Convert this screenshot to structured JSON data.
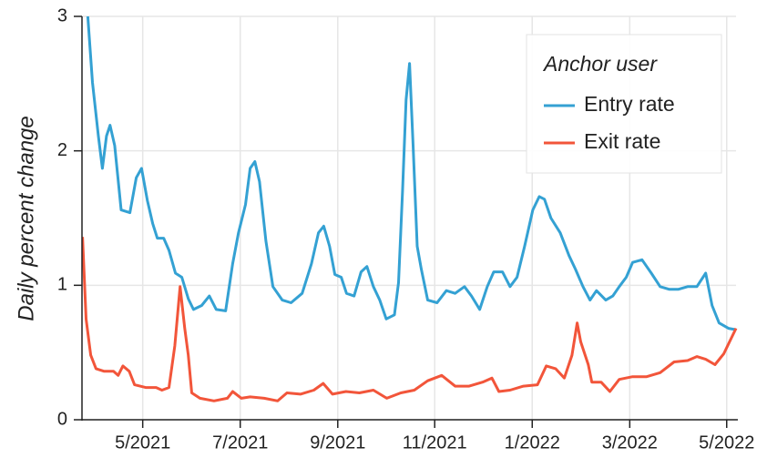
{
  "chart_data": {
    "type": "line",
    "y_label": "Daily percent change",
    "legend_title": "Anchor user",
    "legend_position": "upper right",
    "grid": true,
    "xlim": [
      2021.229,
      2022.349
    ],
    "xticks": [
      {
        "value": 2021.333,
        "label": "5/2021"
      },
      {
        "value": 2021.5,
        "label": "7/2021"
      },
      {
        "value": 2021.667,
        "label": "9/2021"
      },
      {
        "value": 2021.833,
        "label": "11/2021"
      },
      {
        "value": 2022.0,
        "label": "1/2022"
      },
      {
        "value": 2022.167,
        "label": "3/2022"
      },
      {
        "value": 2022.333,
        "label": "5/2022"
      }
    ],
    "ylim": [
      0,
      3
    ],
    "yticks": [
      0,
      1,
      2,
      3
    ],
    "series": [
      {
        "name": "Entry rate",
        "color": "#34a1d3",
        "x": [
          2021.239,
          2021.247,
          2021.257,
          2021.264,
          2021.271,
          2021.277,
          2021.285,
          2021.296,
          2021.311,
          2021.322,
          2021.331,
          2021.341,
          2021.35,
          2021.358,
          2021.369,
          2021.378,
          2021.389,
          2021.4,
          2021.411,
          2021.42,
          2021.434,
          2021.447,
          2021.459,
          2021.475,
          2021.487,
          2021.497,
          2021.509,
          2021.517,
          2021.525,
          2021.533,
          2021.544,
          2021.556,
          2021.572,
          2021.587,
          2021.606,
          2021.622,
          2021.634,
          2021.643,
          2021.653,
          2021.662,
          2021.673,
          2021.682,
          2021.695,
          2021.707,
          2021.717,
          2021.728,
          2021.739,
          2021.75,
          2021.764,
          2021.771,
          2021.778,
          2021.784,
          2021.79,
          2021.796,
          2021.803,
          2021.81,
          2021.821,
          2021.837,
          2021.853,
          2021.868,
          2021.884,
          2021.896,
          2021.91,
          2021.923,
          2021.934,
          2021.949,
          2021.962,
          2021.974,
          2021.987,
          2022.001,
          2022.012,
          2022.021,
          2022.032,
          2022.048,
          2022.063,
          2022.074,
          2022.087,
          2022.099,
          2022.11,
          2022.126,
          2022.138,
          2022.149,
          2022.161,
          2022.172,
          2022.188,
          2022.204,
          2022.219,
          2022.235,
          2022.25,
          2022.266,
          2022.282,
          2022.297,
          2022.308,
          2022.32,
          2022.336,
          2022.349
        ],
        "values": [
          3.0,
          2.51,
          2.11,
          1.87,
          2.11,
          2.19,
          2.04,
          1.56,
          1.54,
          1.8,
          1.87,
          1.63,
          1.46,
          1.35,
          1.35,
          1.26,
          1.09,
          1.06,
          0.9,
          0.82,
          0.85,
          0.92,
          0.82,
          0.81,
          1.16,
          1.39,
          1.6,
          1.87,
          1.92,
          1.77,
          1.33,
          0.99,
          0.89,
          0.87,
          0.94,
          1.16,
          1.39,
          1.44,
          1.29,
          1.08,
          1.06,
          0.94,
          0.92,
          1.1,
          1.14,
          0.99,
          0.89,
          0.75,
          0.78,
          1.02,
          1.7,
          2.38,
          2.65,
          2.04,
          1.29,
          1.12,
          0.89,
          0.87,
          0.96,
          0.94,
          0.99,
          0.92,
          0.82,
          0.99,
          1.1,
          1.1,
          0.99,
          1.06,
          1.29,
          1.56,
          1.66,
          1.64,
          1.5,
          1.39,
          1.22,
          1.12,
          0.99,
          0.89,
          0.96,
          0.89,
          0.92,
          0.99,
          1.06,
          1.17,
          1.19,
          1.09,
          0.99,
          0.97,
          0.97,
          0.99,
          0.99,
          1.09,
          0.85,
          0.72,
          0.68,
          0.67
        ]
      },
      {
        "name": "Exit rate",
        "color": "#f2553a",
        "x": [
          2021.23,
          2021.236,
          2021.244,
          2021.253,
          2021.267,
          2021.283,
          2021.291,
          2021.299,
          2021.31,
          2021.319,
          2021.338,
          2021.356,
          2021.366,
          2021.378,
          2021.388,
          2021.397,
          2021.405,
          2021.411,
          2021.417,
          2021.431,
          2021.455,
          2021.478,
          2021.487,
          2021.502,
          2021.517,
          2021.541,
          2021.564,
          2021.58,
          2021.603,
          2021.626,
          2021.642,
          2021.658,
          2021.681,
          2021.704,
          2021.728,
          2021.751,
          2021.775,
          2021.798,
          2021.821,
          2021.845,
          2021.868,
          2021.892,
          2021.915,
          2021.931,
          2021.943,
          2021.962,
          2021.985,
          2022.009,
          2022.024,
          2022.04,
          2022.055,
          2022.068,
          2022.077,
          2022.083,
          2022.096,
          2022.102,
          2022.118,
          2022.133,
          2022.149,
          2022.172,
          2022.196,
          2022.219,
          2022.243,
          2022.266,
          2022.282,
          2022.297,
          2022.313,
          2022.328,
          2022.349
        ],
        "values": [
          1.36,
          0.75,
          0.48,
          0.38,
          0.36,
          0.36,
          0.33,
          0.4,
          0.36,
          0.26,
          0.24,
          0.24,
          0.22,
          0.24,
          0.55,
          0.99,
          0.68,
          0.48,
          0.2,
          0.16,
          0.14,
          0.16,
          0.21,
          0.16,
          0.17,
          0.16,
          0.14,
          0.2,
          0.19,
          0.22,
          0.27,
          0.19,
          0.21,
          0.2,
          0.22,
          0.16,
          0.2,
          0.22,
          0.29,
          0.33,
          0.25,
          0.25,
          0.28,
          0.31,
          0.21,
          0.22,
          0.25,
          0.26,
          0.4,
          0.38,
          0.31,
          0.48,
          0.72,
          0.58,
          0.41,
          0.28,
          0.28,
          0.21,
          0.3,
          0.32,
          0.32,
          0.35,
          0.43,
          0.44,
          0.47,
          0.45,
          0.41,
          0.49,
          0.68
        ]
      }
    ]
  }
}
